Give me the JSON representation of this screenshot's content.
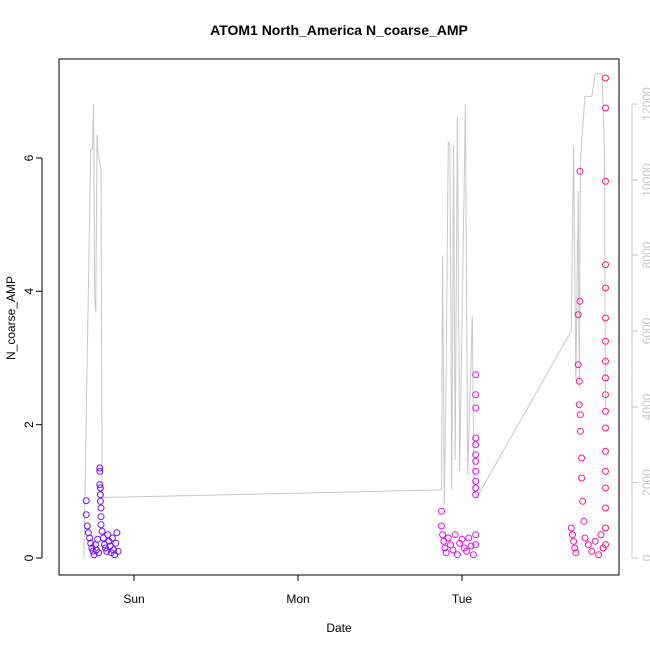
{
  "chart_data": {
    "type": "scatter",
    "title": "ATOM1 North_America N_coarse_AMP",
    "xlabel": "Date",
    "ylabel": "N_coarse_AMP",
    "x_ticks": [
      "Sun",
      "Mon",
      "Tue"
    ],
    "y_ticks": [
      "0",
      "2",
      "4",
      "6"
    ],
    "y2_ticks": [
      "0",
      "2000",
      "4000",
      "6000",
      "8000",
      "10000",
      "12000"
    ],
    "ylim": [
      0,
      7.2
    ],
    "y2lim": [
      0,
      12500
    ],
    "grid": false,
    "legend": "none",
    "colors": {
      "secondary_line": "#c8c8c8",
      "right_axis": "#c8c8c8",
      "day1_points": "#6f10ff",
      "day2_points": "#e010f0",
      "day3_points": "#ff1090"
    },
    "series": [
      {
        "kind": "scatter",
        "axis": "left",
        "points": [
          {
            "x": "Sat 17:00",
            "y": 0.86,
            "color": "#6f10ff"
          },
          {
            "x": "Sat 17:00",
            "y": 0.65,
            "color": "#6f10ff"
          },
          {
            "x": "Sat 17:10",
            "y": 0.48,
            "color": "#6f10ff"
          },
          {
            "x": "Sat 17:20",
            "y": 0.38,
            "color": "#6f10ff"
          },
          {
            "x": "Sat 17:30",
            "y": 0.3,
            "color": "#6f10ff"
          },
          {
            "x": "Sat 17:40",
            "y": 0.22,
            "color": "#6f10ff"
          },
          {
            "x": "Sat 17:50",
            "y": 0.15,
            "color": "#6f10ff"
          },
          {
            "x": "Sat 18:00",
            "y": 0.1,
            "color": "#6f10ff"
          },
          {
            "x": "Sat 18:10",
            "y": 0.05,
            "color": "#6f10ff"
          },
          {
            "x": "Sat 18:20",
            "y": 0.2,
            "color": "#6f10ff"
          },
          {
            "x": "Sat 18:30",
            "y": 0.12,
            "color": "#6f10ff"
          },
          {
            "x": "Sat 18:40",
            "y": 0.28,
            "color": "#6f10ff"
          },
          {
            "x": "Sat 18:50",
            "y": 0.08,
            "color": "#6f10ff"
          },
          {
            "x": "Sat 19:00",
            "y": 1.35,
            "color": "#7010ff"
          },
          {
            "x": "Sat 19:00",
            "y": 1.3,
            "color": "#7010ff"
          },
          {
            "x": "Sat 19:00",
            "y": 1.1,
            "color": "#7010ff"
          },
          {
            "x": "Sat 19:05",
            "y": 1.05,
            "color": "#7010ff"
          },
          {
            "x": "Sat 19:05",
            "y": 0.95,
            "color": "#7010ff"
          },
          {
            "x": "Sat 19:05",
            "y": 0.85,
            "color": "#7010ff"
          },
          {
            "x": "Sat 19:10",
            "y": 0.75,
            "color": "#7010ff"
          },
          {
            "x": "Sat 19:10",
            "y": 0.62,
            "color": "#7010ff"
          },
          {
            "x": "Sat 19:10",
            "y": 0.5,
            "color": "#7010ff"
          },
          {
            "x": "Sat 19:20",
            "y": 0.4,
            "color": "#7010ff"
          },
          {
            "x": "Sat 19:30",
            "y": 0.3,
            "color": "#7010ff"
          },
          {
            "x": "Sat 19:40",
            "y": 0.2,
            "color": "#7010ff"
          },
          {
            "x": "Sat 19:50",
            "y": 0.15,
            "color": "#7010ff"
          },
          {
            "x": "Sat 20:00",
            "y": 0.1,
            "color": "#7010ff"
          },
          {
            "x": "Sat 20:10",
            "y": 0.35,
            "color": "#7010ff"
          },
          {
            "x": "Sat 20:20",
            "y": 0.25,
            "color": "#7010ff"
          },
          {
            "x": "Sat 20:30",
            "y": 0.18,
            "color": "#7010ff"
          },
          {
            "x": "Sat 20:40",
            "y": 0.08,
            "color": "#7010ff"
          },
          {
            "x": "Sat 20:50",
            "y": 0.3,
            "color": "#7010ff"
          },
          {
            "x": "Sat 21:00",
            "y": 0.12,
            "color": "#7010ff"
          },
          {
            "x": "Sat 21:10",
            "y": 0.05,
            "color": "#7010ff"
          },
          {
            "x": "Sat 21:20",
            "y": 0.22,
            "color": "#7010ff"
          },
          {
            "x": "Sat 21:30",
            "y": 0.38,
            "color": "#7010ff"
          },
          {
            "x": "Sat 21:40",
            "y": 0.1,
            "color": "#7010ff"
          },
          {
            "x": "Mon 21:00",
            "y": 0.7,
            "color": "#dd10f0"
          },
          {
            "x": "Mon 21:00",
            "y": 0.48,
            "color": "#dd10f0"
          },
          {
            "x": "Mon 21:10",
            "y": 0.35,
            "color": "#dd10f0"
          },
          {
            "x": "Mon 21:20",
            "y": 0.25,
            "color": "#dd10f0"
          },
          {
            "x": "Mon 21:30",
            "y": 0.15,
            "color": "#dd10f0"
          },
          {
            "x": "Mon 21:40",
            "y": 0.08,
            "color": "#dd10f0"
          },
          {
            "x": "Mon 22:00",
            "y": 0.3,
            "color": "#dd10f0"
          },
          {
            "x": "Mon 22:20",
            "y": 0.2,
            "color": "#dd10f0"
          },
          {
            "x": "Mon 22:40",
            "y": 0.12,
            "color": "#dd10f0"
          },
          {
            "x": "Mon 23:00",
            "y": 0.35,
            "color": "#dd10f0"
          },
          {
            "x": "Mon 23:20",
            "y": 0.05,
            "color": "#dd10f0"
          },
          {
            "x": "Mon 23:40",
            "y": 0.22,
            "color": "#dd10f0"
          },
          {
            "x": "Tue 00:00",
            "y": 0.28,
            "color": "#dd10f0"
          },
          {
            "x": "Tue 00:20",
            "y": 0.15,
            "color": "#dd10f0"
          },
          {
            "x": "Tue 00:40",
            "y": 0.1,
            "color": "#dd10f0"
          },
          {
            "x": "Tue 01:00",
            "y": 0.3,
            "color": "#dd10f0"
          },
          {
            "x": "Tue 01:20",
            "y": 0.18,
            "color": "#dd10f0"
          },
          {
            "x": "Tue 01:40",
            "y": 0.05,
            "color": "#dd10f0"
          },
          {
            "x": "Tue 02:00",
            "y": 2.75,
            "color": "#e010f0"
          },
          {
            "x": "Tue 02:00",
            "y": 2.45,
            "color": "#e010f0"
          },
          {
            "x": "Tue 02:00",
            "y": 2.25,
            "color": "#e010f0"
          },
          {
            "x": "Tue 02:00",
            "y": 1.8,
            "color": "#e010f0"
          },
          {
            "x": "Tue 02:00",
            "y": 1.7,
            "color": "#e010f0"
          },
          {
            "x": "Tue 02:00",
            "y": 1.55,
            "color": "#e010f0"
          },
          {
            "x": "Tue 02:00",
            "y": 1.45,
            "color": "#e010f0"
          },
          {
            "x": "Tue 02:00",
            "y": 1.3,
            "color": "#e010f0"
          },
          {
            "x": "Tue 02:00",
            "y": 1.15,
            "color": "#e010f0"
          },
          {
            "x": "Tue 02:00",
            "y": 1.05,
            "color": "#e010f0"
          },
          {
            "x": "Tue 02:00",
            "y": 0.95,
            "color": "#e010f0"
          },
          {
            "x": "Tue 02:00",
            "y": 0.35,
            "color": "#e010f0"
          },
          {
            "x": "Tue 02:00",
            "y": 0.2,
            "color": "#e010f0"
          },
          {
            "x": "Tue 16:00",
            "y": 0.45,
            "color": "#ff10b0"
          },
          {
            "x": "Tue 16:10",
            "y": 0.35,
            "color": "#ff10b0"
          },
          {
            "x": "Tue 16:20",
            "y": 0.25,
            "color": "#ff10b0"
          },
          {
            "x": "Tue 16:30",
            "y": 0.15,
            "color": "#ff10b0"
          },
          {
            "x": "Tue 16:40",
            "y": 0.08,
            "color": "#ff10b0"
          },
          {
            "x": "Tue 17:00",
            "y": 3.65,
            "color": "#ff10a0"
          },
          {
            "x": "Tue 17:00",
            "y": 2.9,
            "color": "#ff10a0"
          },
          {
            "x": "Tue 17:10",
            "y": 2.65,
            "color": "#ff10a0"
          },
          {
            "x": "Tue 17:10",
            "y": 2.3,
            "color": "#ff10a0"
          },
          {
            "x": "Tue 17:15",
            "y": 5.8,
            "color": "#ff10a0"
          },
          {
            "x": "Tue 17:15",
            "y": 3.85,
            "color": "#ff10a0"
          },
          {
            "x": "Tue 17:20",
            "y": 2.15,
            "color": "#ff10a0"
          },
          {
            "x": "Tue 17:20",
            "y": 1.9,
            "color": "#ff10a0"
          },
          {
            "x": "Tue 17:30",
            "y": 1.5,
            "color": "#ff10a0"
          },
          {
            "x": "Tue 17:30",
            "y": 1.2,
            "color": "#ff10a0"
          },
          {
            "x": "Tue 17:40",
            "y": 0.85,
            "color": "#ff10a0"
          },
          {
            "x": "Tue 17:50",
            "y": 0.55,
            "color": "#ff10a0"
          },
          {
            "x": "Tue 18:00",
            "y": 0.3,
            "color": "#ff10a0"
          },
          {
            "x": "Tue 18:30",
            "y": 0.2,
            "color": "#ff1090"
          },
          {
            "x": "Tue 19:00",
            "y": 0.1,
            "color": "#ff1090"
          },
          {
            "x": "Tue 19:30",
            "y": 0.25,
            "color": "#ff1090"
          },
          {
            "x": "Tue 20:00",
            "y": 0.05,
            "color": "#ff1090"
          },
          {
            "x": "Tue 20:20",
            "y": 0.35,
            "color": "#ff1090"
          },
          {
            "x": "Tue 20:40",
            "y": 0.15,
            "color": "#ff1090"
          },
          {
            "x": "Tue 21:00",
            "y": 7.2,
            "color": "#ff1080"
          },
          {
            "x": "Tue 21:00",
            "y": 6.75,
            "color": "#ff1080"
          },
          {
            "x": "Tue 21:00",
            "y": 5.65,
            "color": "#ff1080"
          },
          {
            "x": "Tue 21:00",
            "y": 4.4,
            "color": "#ff1080"
          },
          {
            "x": "Tue 21:00",
            "y": 4.05,
            "color": "#ff1080"
          },
          {
            "x": "Tue 21:00",
            "y": 3.6,
            "color": "#ff1080"
          },
          {
            "x": "Tue 21:00",
            "y": 3.25,
            "color": "#ff1080"
          },
          {
            "x": "Tue 21:00",
            "y": 2.95,
            "color": "#ff1080"
          },
          {
            "x": "Tue 21:00",
            "y": 2.7,
            "color": "#ff1080"
          },
          {
            "x": "Tue 21:00",
            "y": 2.45,
            "color": "#ff1080"
          },
          {
            "x": "Tue 21:00",
            "y": 2.2,
            "color": "#ff1080"
          },
          {
            "x": "Tue 21:00",
            "y": 1.95,
            "color": "#ff1080"
          },
          {
            "x": "Tue 21:00",
            "y": 1.6,
            "color": "#ff1080"
          },
          {
            "x": "Tue 21:00",
            "y": 1.3,
            "color": "#ff1080"
          },
          {
            "x": "Tue 21:00",
            "y": 1.05,
            "color": "#ff1080"
          },
          {
            "x": "Tue 21:00",
            "y": 0.75,
            "color": "#ff1080"
          },
          {
            "x": "Tue 21:00",
            "y": 0.45,
            "color": "#ff1080"
          },
          {
            "x": "Tue 21:00",
            "y": 0.2,
            "color": "#ff1080"
          }
        ]
      },
      {
        "kind": "line",
        "axis": "right",
        "color": "#c8c8c8",
        "points": [
          {
            "x": "Sat 16:40",
            "y": 0
          },
          {
            "x": "Sat 17:40",
            "y": 10800
          },
          {
            "x": "Sat 17:55",
            "y": 10800
          },
          {
            "x": "Sat 18:05",
            "y": 12000
          },
          {
            "x": "Sat 18:15",
            "y": 6900
          },
          {
            "x": "Sat 18:25",
            "y": 6500
          },
          {
            "x": "Sat 18:35",
            "y": 11200
          },
          {
            "x": "Sat 18:45",
            "y": 10700
          },
          {
            "x": "Sat 18:55",
            "y": 10500
          },
          {
            "x": "Sat 19:10",
            "y": 10300
          },
          {
            "x": "Sat 19:20",
            "y": 1600
          },
          {
            "x": "Mon 21:00",
            "y": 1800
          },
          {
            "x": "Mon 21:10",
            "y": 8000
          },
          {
            "x": "Mon 21:25",
            "y": 1400
          },
          {
            "x": "Mon 21:40",
            "y": 4800
          },
          {
            "x": "Mon 22:00",
            "y": 11000
          },
          {
            "x": "Mon 22:15",
            "y": 10900
          },
          {
            "x": "Mon 22:30",
            "y": 1800
          },
          {
            "x": "Mon 22:45",
            "y": 10900
          },
          {
            "x": "Mon 23:00",
            "y": 2600
          },
          {
            "x": "Mon 23:20",
            "y": 11700
          },
          {
            "x": "Mon 23:40",
            "y": 2300
          },
          {
            "x": "Tue 00:30",
            "y": 12000
          },
          {
            "x": "Tue 00:50",
            "y": 2200
          },
          {
            "x": "Tue 01:30",
            "y": 6400
          },
          {
            "x": "Tue 01:45",
            "y": 1800
          },
          {
            "x": "Tue 02:10",
            "y": 1600
          },
          {
            "x": "Tue 16:00",
            "y": 6000
          },
          {
            "x": "Tue 16:20",
            "y": 10900
          },
          {
            "x": "Tue 16:40",
            "y": 4700
          },
          {
            "x": "Tue 17:00",
            "y": 9700
          },
          {
            "x": "Tue 17:10",
            "y": 4500
          },
          {
            "x": "Tue 17:20",
            "y": 10400
          },
          {
            "x": "Tue 17:30",
            "y": 11000
          },
          {
            "x": "Tue 18:00",
            "y": 12200
          },
          {
            "x": "Tue 19:00",
            "y": 12200
          },
          {
            "x": "Tue 19:30",
            "y": 12800
          },
          {
            "x": "Tue 20:30",
            "y": 12800
          },
          {
            "x": "Tue 20:50",
            "y": 10800
          },
          {
            "x": "Tue 21:00",
            "y": 4000
          }
        ]
      }
    ]
  }
}
